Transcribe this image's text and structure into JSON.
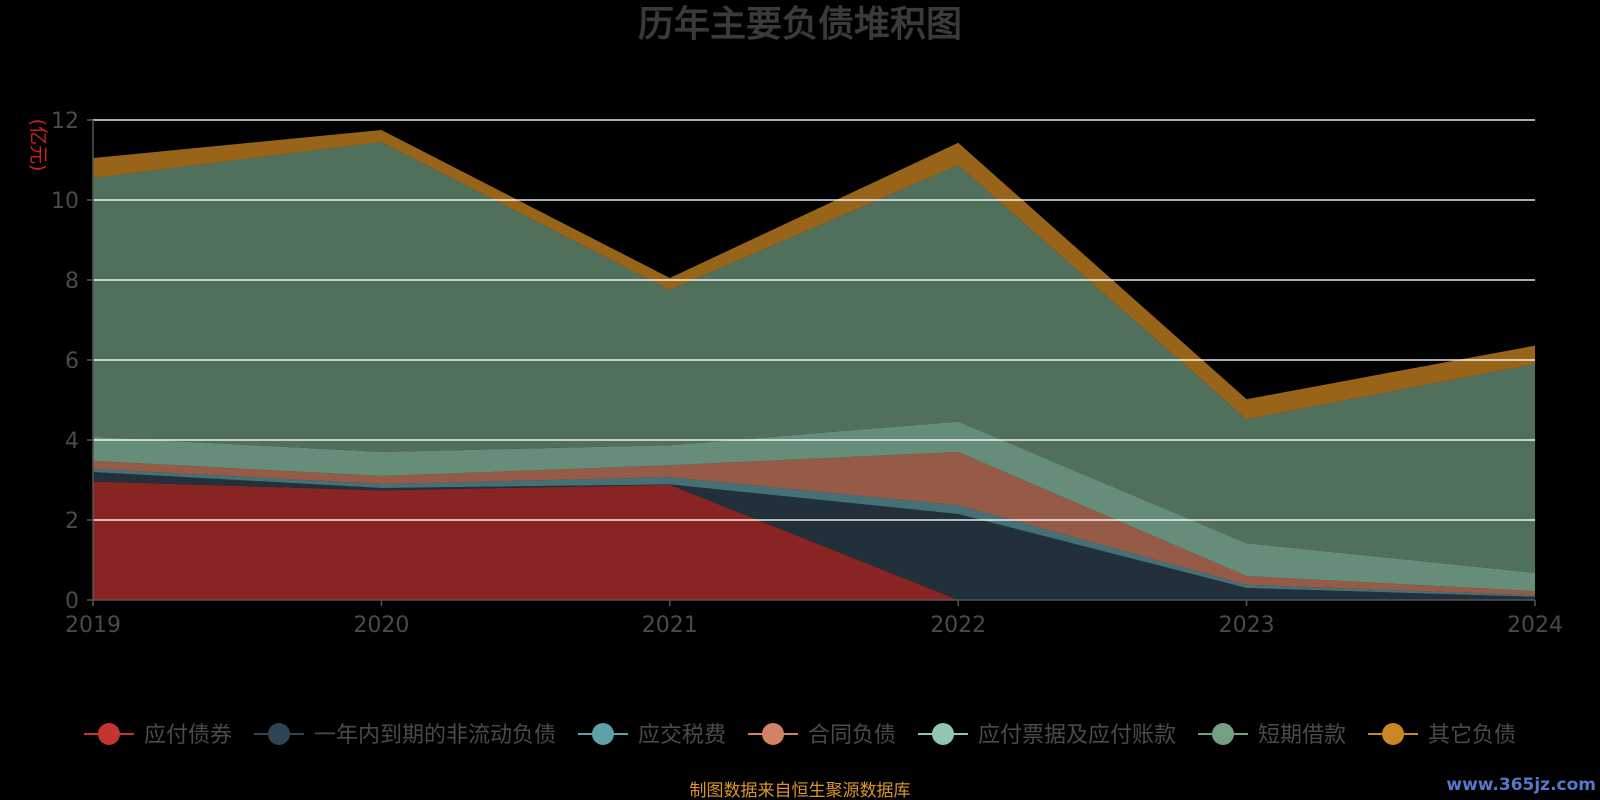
{
  "chart_data": {
    "type": "area",
    "stacked": true,
    "title": "历年主要负债堆积图",
    "ylabel": "(亿元)",
    "x": [
      "2019",
      "2020",
      "2021",
      "2022",
      "2023",
      "2024"
    ],
    "ylim": [
      0,
      12
    ],
    "yticks": [
      "0",
      "2",
      "4",
      "6",
      "8",
      "10",
      "12"
    ],
    "grid": true,
    "legend_position": "bottom",
    "series": [
      {
        "name": "应付债券",
        "color": "#c23531",
        "values": [
          2.96,
          2.74,
          2.88,
          0,
          0,
          0
        ]
      },
      {
        "name": "一年内到期的非流动负债",
        "color": "#2f4554",
        "values": [
          0.24,
          0.06,
          0.01,
          2.15,
          0.3,
          0.08
        ]
      },
      {
        "name": "应交税费",
        "color": "#61a0a8",
        "values": [
          0.08,
          0.1,
          0.18,
          0.22,
          0.08,
          0.04
        ]
      },
      {
        "name": "合同负债",
        "color": "#d48265",
        "values": [
          0.2,
          0.2,
          0.3,
          1.33,
          0.22,
          0.1
        ]
      },
      {
        "name": "应付票据及应付账款",
        "color": "#91c7ae",
        "values": [
          0.6,
          0.6,
          0.5,
          0.76,
          0.82,
          0.46
        ]
      },
      {
        "name": "短期借款",
        "color": "#749f83",
        "values": [
          6.47,
          7.75,
          3.88,
          6.41,
          3.1,
          5.22
        ]
      },
      {
        "name": "其它负债",
        "color": "#ca8622",
        "values": [
          0.5,
          0.3,
          0.3,
          0.56,
          0.5,
          0.46
        ]
      }
    ]
  },
  "footer": {
    "source": "制图数据来自恒生聚源数据库",
    "watermark": "www.365jz.com"
  }
}
